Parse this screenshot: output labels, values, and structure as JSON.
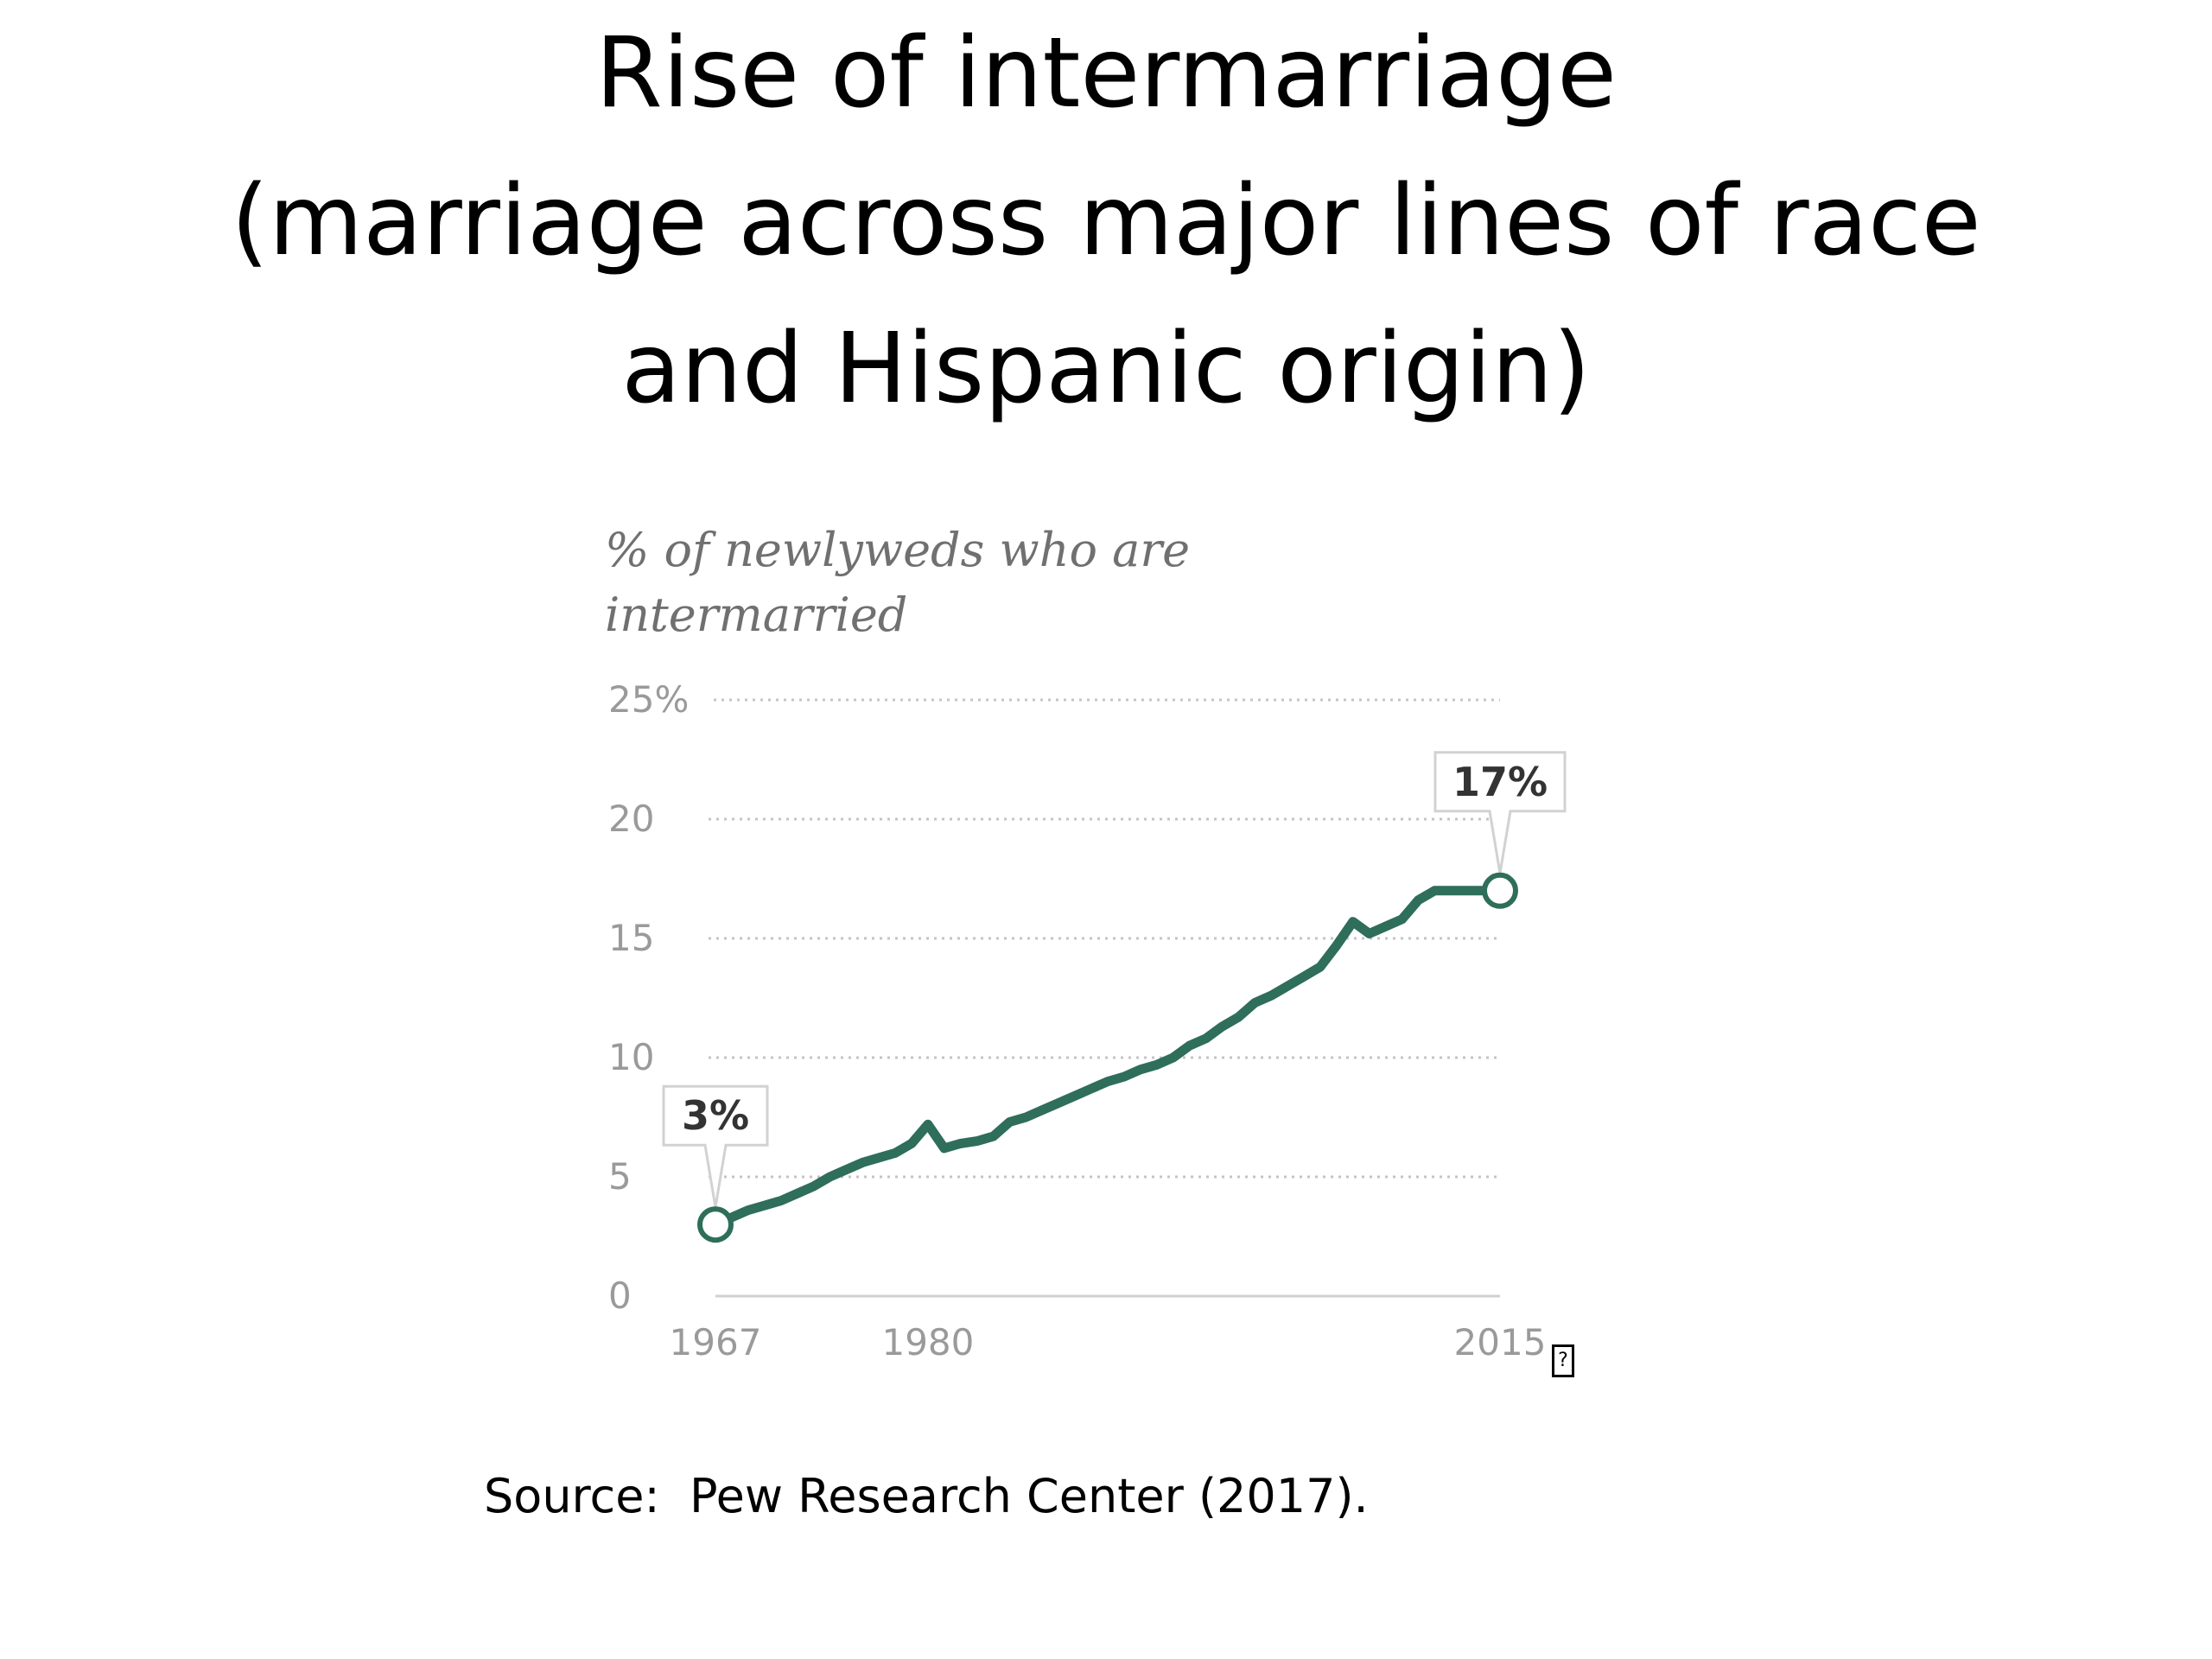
{
  "slide": {
    "title_lines": [
      "Rise of intermarriage",
      "(marriage across major lines of race",
      "and Hispanic origin)"
    ],
    "source": "Source:  Pew Research Center (2017).",
    "broken_image_glyph": "?"
  },
  "chart_data": {
    "type": "line",
    "subtitle_lines": [
      "% of newlyweds who are",
      "intermarried"
    ],
    "xlabel": "",
    "ylabel": "",
    "y_ticks": [
      0,
      5,
      10,
      15,
      20,
      25
    ],
    "y_tick_labels": [
      "0",
      "5",
      "10",
      "15",
      "20",
      "25%"
    ],
    "x_tick_labels": [
      "1967",
      "1980",
      "2015"
    ],
    "xlim": [
      1967,
      2015
    ],
    "ylim": [
      0,
      25
    ],
    "grid": "horizontal dotted",
    "series": [
      {
        "color": "#2e6e5a",
        "x": [
          1967,
          1968,
          1969,
          1970,
          1971,
          1972,
          1973,
          1974,
          1975,
          1976,
          1977,
          1978,
          1979,
          1980,
          1981,
          1982,
          1983,
          1984,
          1985,
          1986,
          1987,
          1988,
          1989,
          1990,
          1991,
          1992,
          1993,
          1994,
          1995,
          1996,
          1997,
          1998,
          1999,
          2000,
          2001,
          2002,
          2003,
          2004,
          2005,
          2006,
          2007,
          2008,
          2009,
          2010,
          2011,
          2012,
          2013,
          2014,
          2015
        ],
        "values": [
          3,
          3.3,
          3.6,
          3.8,
          4.0,
          4.3,
          4.6,
          5.0,
          5.3,
          5.6,
          5.8,
          6.0,
          6.4,
          7.2,
          6.2,
          6.4,
          6.5,
          6.7,
          7.3,
          7.5,
          7.8,
          8.1,
          8.4,
          8.7,
          9.0,
          9.2,
          9.5,
          9.7,
          10.0,
          10.5,
          10.8,
          11.3,
          11.7,
          12.3,
          12.6,
          13.0,
          13.4,
          13.8,
          14.7,
          15.7,
          15.2,
          15.5,
          15.8,
          16.6,
          17,
          17,
          17,
          17,
          17
        ]
      }
    ],
    "annotations": [
      {
        "x": 1967,
        "y": 3,
        "label": "3%"
      },
      {
        "x": 2015,
        "y": 17,
        "label": "17%"
      }
    ]
  }
}
